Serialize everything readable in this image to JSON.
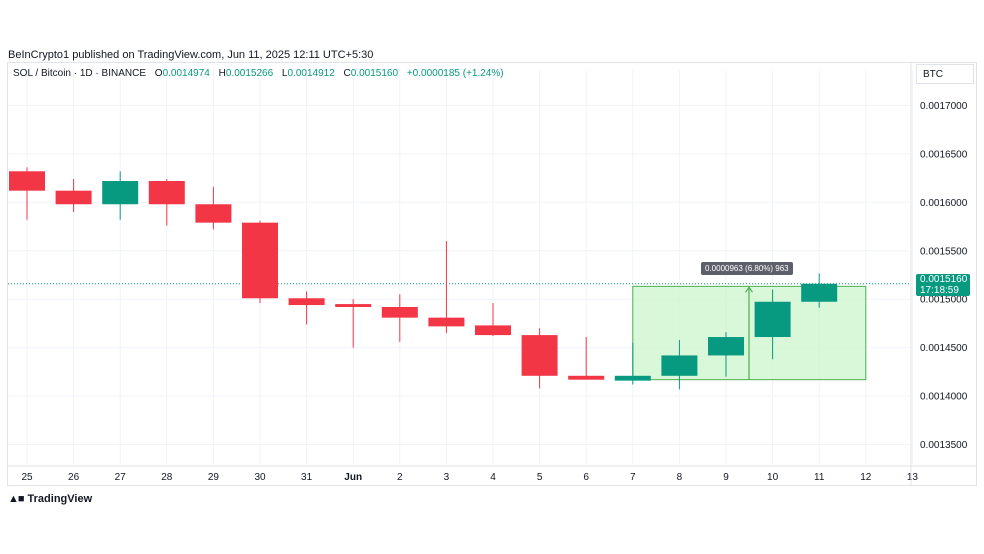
{
  "header": {
    "published_text": "BeInCrypto1 published on TradingView.com, Jun 11, 2025 12:11 UTC+5:30"
  },
  "legend": {
    "symbol": "SOL / Bitcoin · 1D · BINANCE",
    "open_label": "O",
    "open": "0.0014974",
    "high_label": "H",
    "high": "0.0015266",
    "low_label": "L",
    "low": "0.0014912",
    "close_label": "C",
    "close": "0.0015160",
    "change": "+0.0000185 (+1.24%)"
  },
  "currency": "BTC",
  "price_tag": {
    "price": "0.0015160",
    "countdown": "17:18:59"
  },
  "measure_label": "0.0000963 (6.80%) 963",
  "footer": {
    "brand": "TradingView"
  },
  "colors": {
    "up": "#089981",
    "down": "#f23645",
    "range_fill": "#ccf5cc",
    "range_line": "#4caf50"
  },
  "chart_data": {
    "type": "candlestick",
    "ylim": [
      0.00133,
      0.00172
    ],
    "y_ticks": [
      "0.0013500",
      "0.0014000",
      "0.0014500",
      "0.0015000",
      "0.0015500",
      "0.0016000",
      "0.0016500",
      "0.0017000"
    ],
    "x_tick_labels": [
      "25",
      "26",
      "27",
      "28",
      "29",
      "30",
      "31",
      "Jun",
      "2",
      "3",
      "4",
      "5",
      "6",
      "7",
      "8",
      "9",
      "10",
      "11",
      "12",
      "13"
    ],
    "candles": [
      {
        "label": "25",
        "o": 0.001632,
        "h": 0.001636,
        "l": 0.001582,
        "c": 0.001612
      },
      {
        "label": "26",
        "o": 0.001612,
        "h": 0.001624,
        "l": 0.00159,
        "c": 0.001598
      },
      {
        "label": "27",
        "o": 0.001598,
        "h": 0.001632,
        "l": 0.001582,
        "c": 0.001622
      },
      {
        "label": "28",
        "o": 0.001622,
        "h": 0.001624,
        "l": 0.001576,
        "c": 0.001598
      },
      {
        "label": "29",
        "o": 0.001598,
        "h": 0.001616,
        "l": 0.001572,
        "c": 0.001579
      },
      {
        "label": "30",
        "o": 0.001579,
        "h": 0.001581,
        "l": 0.001496,
        "c": 0.001501
      },
      {
        "label": "31",
        "o": 0.001501,
        "h": 0.001508,
        "l": 0.001474,
        "c": 0.001494
      },
      {
        "label": "Jun",
        "o": 0.001495,
        "h": 0.0015,
        "l": 0.00145,
        "c": 0.001492
      },
      {
        "label": "2",
        "o": 0.001492,
        "h": 0.001505,
        "l": 0.001456,
        "c": 0.001481
      },
      {
        "label": "3",
        "o": 0.001481,
        "h": 0.00156,
        "l": 0.001465,
        "c": 0.001472
      },
      {
        "label": "4",
        "o": 0.001473,
        "h": 0.001496,
        "l": 0.001462,
        "c": 0.001463
      },
      {
        "label": "5",
        "o": 0.001463,
        "h": 0.00147,
        "l": 0.001408,
        "c": 0.001421
      },
      {
        "label": "6",
        "o": 0.001421,
        "h": 0.001461,
        "l": 0.001417,
        "c": 0.001417
      },
      {
        "label": "7",
        "o": 0.001416,
        "h": 0.001455,
        "l": 0.001412,
        "c": 0.001421
      },
      {
        "label": "8",
        "o": 0.001421,
        "h": 0.001458,
        "l": 0.001407,
        "c": 0.001442
      },
      {
        "label": "9",
        "o": 0.001442,
        "h": 0.001466,
        "l": 0.00142,
        "c": 0.001461
      },
      {
        "label": "10",
        "o": 0.001461,
        "h": 0.00151,
        "l": 0.001438,
        "c": 0.0014974
      },
      {
        "label": "11",
        "o": 0.0014974,
        "h": 0.0015266,
        "l": 0.0014912,
        "c": 0.001516
      }
    ],
    "last_price": 0.001516,
    "range_box": {
      "from_label": "7",
      "to_label": "12",
      "low": 0.001417,
      "high": 0.0015133
    },
    "grid": true
  }
}
